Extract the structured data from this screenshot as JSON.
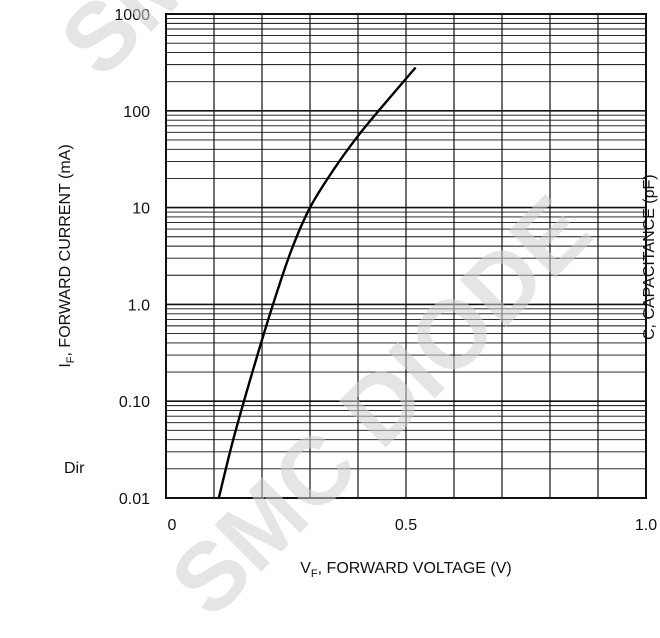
{
  "chart_data": {
    "type": "line",
    "xlabel_main": "V",
    "xlabel_sub": "F",
    "xlabel_rest": ", FORWARD VOLTAGE (V)",
    "ylabel_main": "I",
    "ylabel_sub": "F",
    "ylabel_rest": ", FORWARD CURRENT (mA)",
    "xlim": [
      0,
      1.0
    ],
    "ylim": [
      0.01,
      1000
    ],
    "yscale": "log",
    "grid": true,
    "x_ticks": [
      {
        "value": 0,
        "label": "0"
      },
      {
        "value": 0.5,
        "label": "0.5"
      },
      {
        "value": 1.0,
        "label": "1.0"
      }
    ],
    "y_ticks": [
      {
        "value": 0.01,
        "label": "0.01"
      },
      {
        "value": 0.1,
        "label": "0.10"
      },
      {
        "value": 1,
        "label": "1.0"
      },
      {
        "value": 10,
        "label": "10"
      },
      {
        "value": 100,
        "label": "100"
      },
      {
        "value": 1000,
        "label": "1000"
      }
    ],
    "series": [
      {
        "color": "#000000",
        "points": [
          {
            "x": 0.11,
            "y": 0.01
          },
          {
            "x": 0.14,
            "y": 0.04
          },
          {
            "x": 0.18,
            "y": 0.2
          },
          {
            "x": 0.22,
            "y": 0.9
          },
          {
            "x": 0.26,
            "y": 3.5
          },
          {
            "x": 0.3,
            "y": 10
          },
          {
            "x": 0.35,
            "y": 25
          },
          {
            "x": 0.4,
            "y": 55
          },
          {
            "x": 0.45,
            "y": 110
          },
          {
            "x": 0.52,
            "y": 280
          }
        ]
      }
    ],
    "colors": {
      "grid": "#111111",
      "frame": "#111111",
      "curve": "#000000"
    }
  },
  "side_text_left": "Dir",
  "side_text_right": "C, CAPACITANCE (pF)",
  "watermark_text": "SMC DIODE"
}
